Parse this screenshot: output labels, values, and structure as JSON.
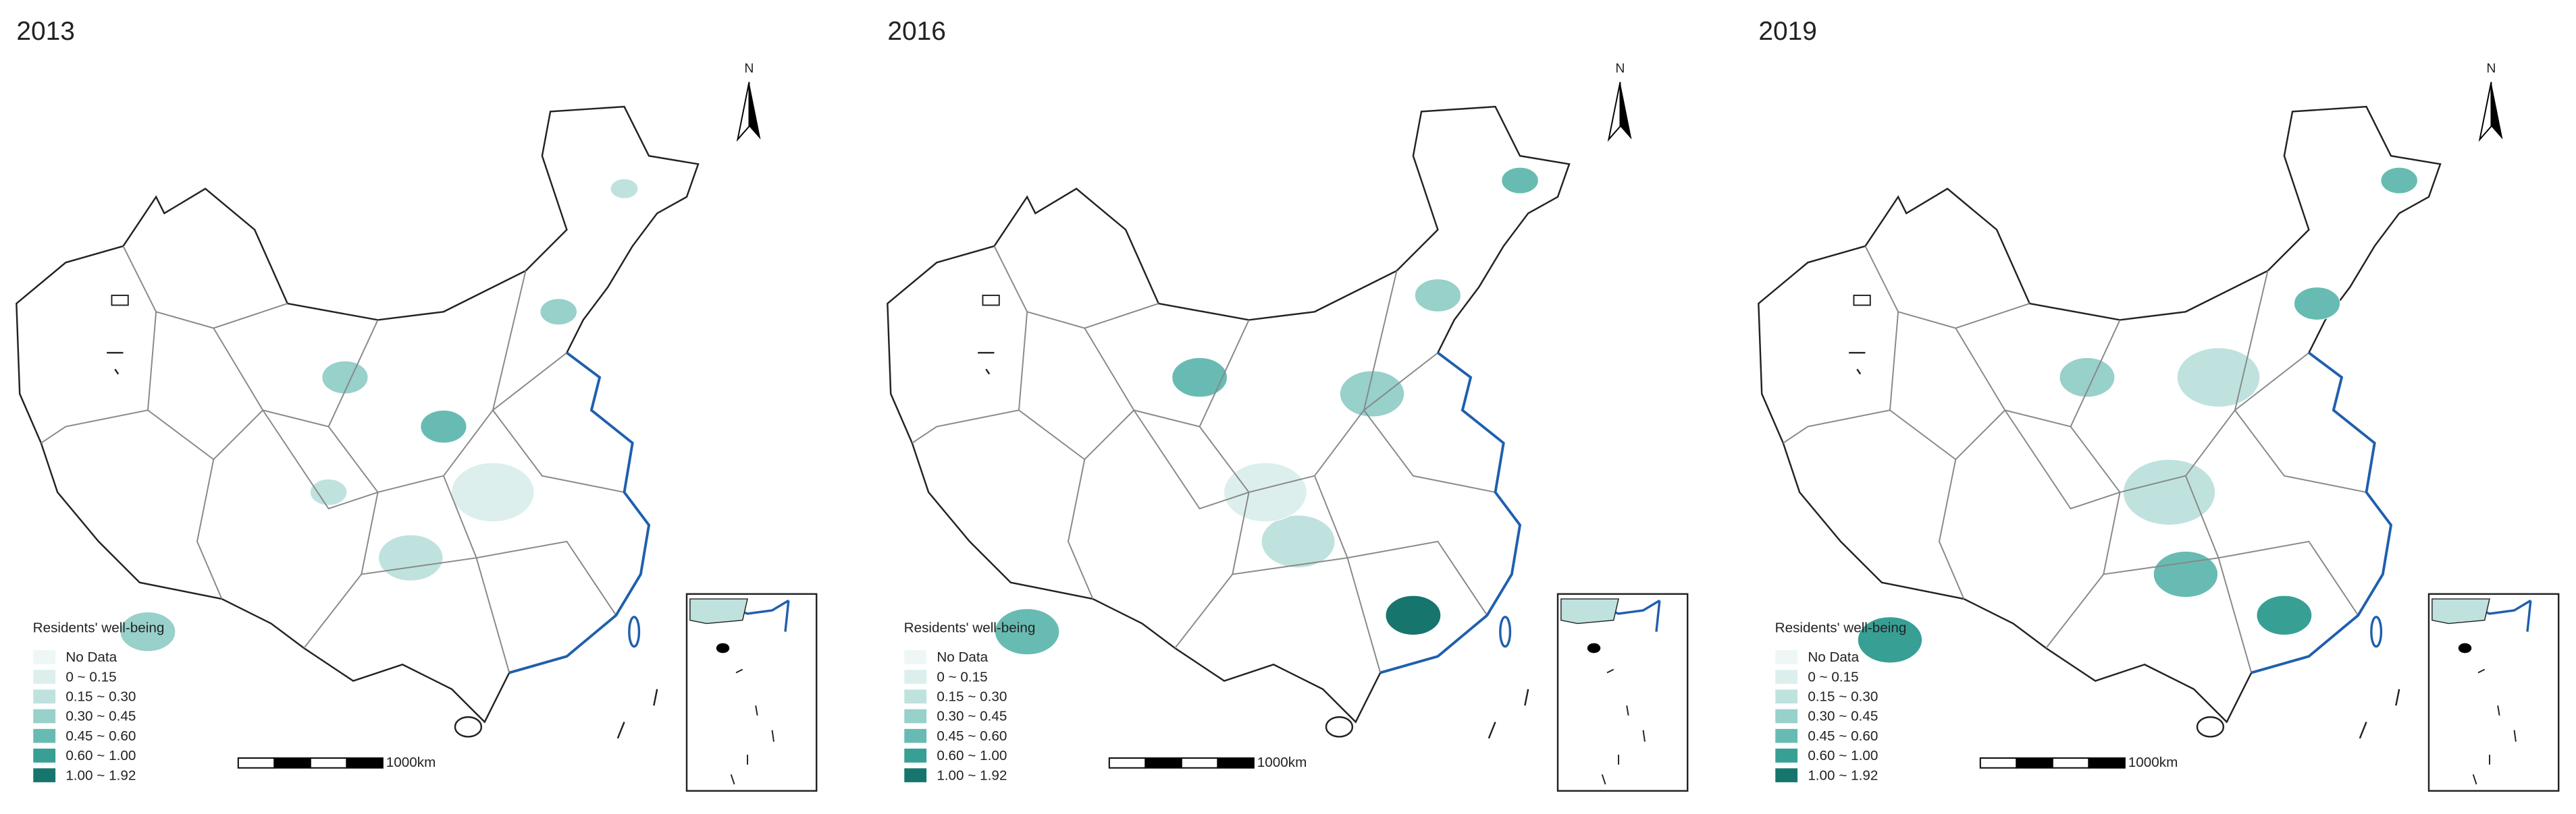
{
  "panels": [
    {
      "year": "2013"
    },
    {
      "year": "2016"
    },
    {
      "year": "2019"
    }
  ],
  "north_label": "N",
  "legend": {
    "title": "Residents' well-being",
    "items": [
      {
        "label": "No Data",
        "color": "#eef7f6"
      },
      {
        "label": "0 ~ 0.15",
        "color": "#dcefed"
      },
      {
        "label": "0.15 ~ 0.30",
        "color": "#bfe2de"
      },
      {
        "label": "0.30 ~ 0.45",
        "color": "#98d0ca"
      },
      {
        "label": "0.45 ~ 0.60",
        "color": "#68bbb2"
      },
      {
        "label": "0.60 ~ 1.00",
        "color": "#389f95"
      },
      {
        "label": "1.00 ~ 1.92",
        "color": "#16766d"
      }
    ]
  },
  "scale_label": "1000km"
}
